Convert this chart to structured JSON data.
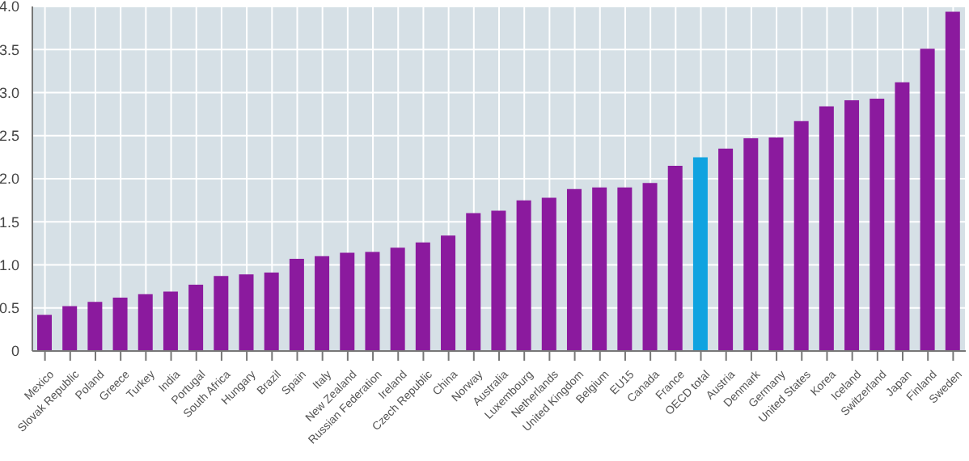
{
  "chart_data": {
    "type": "bar",
    "categories": [
      "Mexico",
      "Slovak Republic",
      "Poland",
      "Greece",
      "Turkey",
      "India",
      "Portugal",
      "South Africa",
      "Hungary",
      "Brazil",
      "Spain",
      "Italy",
      "New Zealand",
      "Russian Federation",
      "Ireland",
      "Czech Republic",
      "China",
      "Norway",
      "Australia",
      "Luxembourg",
      "Netherlands",
      "United Kingdom",
      "Belgium",
      "EU15",
      "Canada",
      "France",
      "OECD total",
      "Austria",
      "Denmark",
      "Germany",
      "United States",
      "Korea",
      "Iceland",
      "Switzerland",
      "Japan",
      "Finland",
      "Sweden"
    ],
    "values": [
      0.42,
      0.52,
      0.57,
      0.62,
      0.66,
      0.69,
      0.77,
      0.87,
      0.89,
      0.91,
      1.07,
      1.1,
      1.14,
      1.15,
      1.2,
      1.26,
      1.34,
      1.6,
      1.63,
      1.75,
      1.78,
      1.88,
      1.9,
      1.9,
      1.95,
      2.15,
      2.25,
      2.35,
      2.47,
      2.48,
      2.67,
      2.84,
      2.91,
      2.93,
      3.12,
      3.51,
      3.94
    ],
    "colors": [
      "#8b1a9e",
      "#8b1a9e",
      "#8b1a9e",
      "#8b1a9e",
      "#8b1a9e",
      "#8b1a9e",
      "#8b1a9e",
      "#8b1a9e",
      "#8b1a9e",
      "#8b1a9e",
      "#8b1a9e",
      "#8b1a9e",
      "#8b1a9e",
      "#8b1a9e",
      "#8b1a9e",
      "#8b1a9e",
      "#8b1a9e",
      "#8b1a9e",
      "#8b1a9e",
      "#8b1a9e",
      "#8b1a9e",
      "#8b1a9e",
      "#8b1a9e",
      "#8b1a9e",
      "#8b1a9e",
      "#8b1a9e",
      "#10a3e0",
      "#8b1a9e",
      "#8b1a9e",
      "#8b1a9e",
      "#8b1a9e",
      "#8b1a9e",
      "#8b1a9e",
      "#8b1a9e",
      "#8b1a9e",
      "#8b1a9e",
      "#8b1a9e"
    ],
    "ylim": [
      0,
      4
    ],
    "yticks": [
      {
        "value": 0,
        "label": "0"
      },
      0.5,
      {
        "value": 1,
        "label": "1.0"
      },
      1.5,
      {
        "value": 2,
        "label": "2.0"
      },
      2.5,
      {
        "value": 3,
        "label": "3.0"
      },
      3.5,
      {
        "value": 4,
        "label": "4.0"
      }
    ],
    "grid": true
  }
}
